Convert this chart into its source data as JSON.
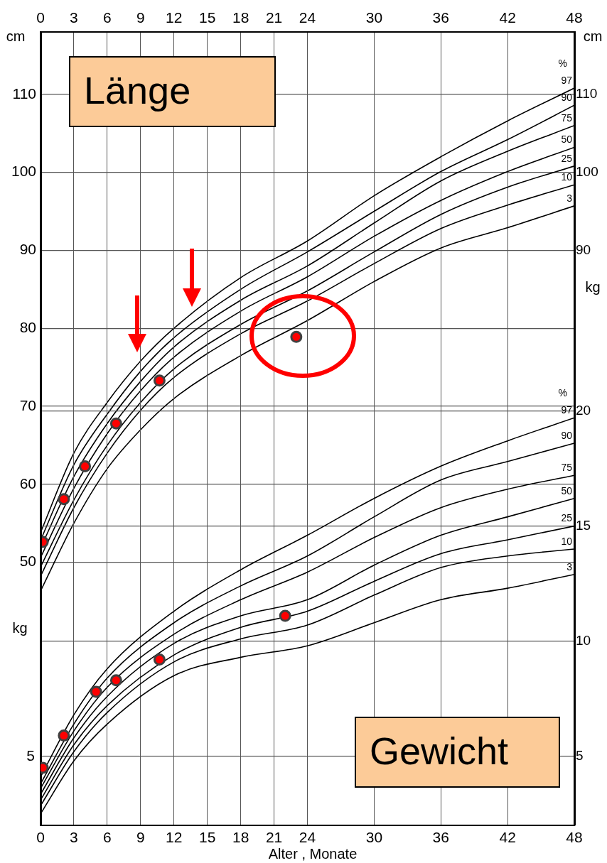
{
  "chart_data": [
    {
      "type": "line",
      "title": "Länge",
      "ylabel": "cm",
      "y2label": "cm",
      "xlim": [
        0,
        48
      ],
      "xticks": [
        0,
        3,
        6,
        9,
        12,
        15,
        18,
        21,
        24,
        30,
        36,
        42,
        48
      ],
      "ylim": [
        44.5,
        118
      ],
      "yticks": [
        50,
        60,
        70,
        80,
        90,
        100,
        110
      ],
      "y2lim": [
        44.5,
        118
      ],
      "y2ticks": [
        90,
        100,
        110
      ],
      "grid": true,
      "annotations": [
        "%"
      ],
      "series": [
        {
          "name": "97",
          "color": "#000000",
          "x": [
            0,
            3,
            6,
            9,
            12,
            18,
            24,
            30,
            36,
            42,
            48
          ],
          "values": [
            53.8,
            64,
            70.5,
            75.8,
            80,
            86.5,
            91.2,
            97,
            102,
            106.6,
            110.8
          ]
        },
        {
          "name": "90",
          "color": "#000000",
          "x": [
            0,
            3,
            6,
            9,
            12,
            18,
            24,
            30,
            36,
            42,
            48
          ],
          "values": [
            52.8,
            62.5,
            69,
            74.5,
            78.8,
            85,
            89.8,
            95,
            100.1,
            104.2,
            108.6
          ]
        },
        {
          "name": "75",
          "color": "#000000",
          "x": [
            0,
            3,
            6,
            9,
            12,
            18,
            24,
            30,
            36,
            42,
            48
          ],
          "values": [
            51.8,
            61,
            67.8,
            73.2,
            77.6,
            83.6,
            88,
            93.5,
            98.9,
            102.7,
            106
          ]
        },
        {
          "name": "50",
          "color": "#000000",
          "x": [
            0,
            3,
            6,
            9,
            12,
            18,
            24,
            30,
            36,
            42,
            48
          ],
          "values": [
            50.6,
            59.5,
            66.5,
            72,
            76.3,
            82.2,
            86.6,
            91.8,
            96.4,
            100.1,
            103.2
          ]
        },
        {
          "name": "25",
          "color": "#000000",
          "x": [
            0,
            3,
            6,
            9,
            12,
            18,
            24,
            30,
            36,
            42,
            48
          ],
          "values": [
            49.4,
            58,
            65,
            70.5,
            74.8,
            80.5,
            84.8,
            89.8,
            94.6,
            98.1,
            100.8
          ]
        },
        {
          "name": "10",
          "color": "#000000",
          "x": [
            0,
            3,
            6,
            9,
            12,
            18,
            24,
            30,
            36,
            42,
            48
          ],
          "values": [
            48.2,
            57,
            64,
            69.5,
            73.7,
            79.3,
            83.5,
            88.3,
            92.8,
            95.8,
            98.4
          ]
        },
        {
          "name": "3",
          "color": "#000000",
          "x": [
            0,
            3,
            6,
            9,
            12,
            18,
            24,
            30,
            36,
            42,
            48
          ],
          "values": [
            46.3,
            55,
            62,
            67,
            71,
            76.5,
            81,
            86,
            90.3,
            92.9,
            95.7
          ]
        },
        {
          "type": "scatter",
          "marker": "circle",
          "color": "#ff0000",
          "x": [
            0.2,
            2.1,
            4,
            6.8,
            10.7,
            23
          ],
          "values": [
            52.6,
            58.1,
            62.3,
            67.8,
            73.3,
            78.9
          ]
        }
      ]
    },
    {
      "type": "line",
      "title": "Gewicht",
      "xlabel": "Alter , Monate",
      "ylabel": "kg",
      "y2label": "kg",
      "xlim": [
        0,
        48
      ],
      "xticks": [
        0,
        3,
        6,
        9,
        12,
        15,
        18,
        21,
        24,
        30,
        36,
        42,
        48
      ],
      "y2lim": [
        2,
        25.6
      ],
      "y2ticks": [
        5,
        10,
        15,
        20
      ],
      "grid": true,
      "annotations": [
        "%",
        "5"
      ],
      "series": [
        {
          "name": "97",
          "axis": "y2",
          "color": "#000000",
          "x": [
            0,
            3,
            6,
            12,
            18,
            24,
            30,
            36,
            42,
            48
          ],
          "values": [
            4.1,
            6.8,
            8.8,
            11.3,
            13.1,
            14.6,
            16.2,
            17.6,
            18.7,
            19.7
          ]
        },
        {
          "name": "90",
          "axis": "y2",
          "color": "#000000",
          "x": [
            0,
            3,
            6,
            12,
            18,
            24,
            30,
            36,
            42,
            48
          ],
          "values": [
            3.8,
            6.4,
            8.4,
            10.8,
            12.4,
            13.7,
            15.4,
            17,
            17.8,
            18.6
          ]
        },
        {
          "name": "75",
          "axis": "y2",
          "color": "#000000",
          "x": [
            0,
            3,
            6,
            12,
            18,
            24,
            30,
            36,
            42,
            48
          ],
          "values": [
            3.6,
            6.1,
            8,
            10.3,
            11.8,
            13,
            14.5,
            15.8,
            16.6,
            17.2
          ]
        },
        {
          "name": "50",
          "axis": "y2",
          "color": "#000000",
          "x": [
            0,
            3,
            6,
            12,
            18,
            24,
            30,
            36,
            42,
            48
          ],
          "values": [
            3.35,
            5.8,
            7.6,
            9.9,
            11.1,
            11.8,
            13.3,
            14.6,
            15.4,
            16.2
          ]
        },
        {
          "name": "25",
          "axis": "y2",
          "color": "#000000",
          "x": [
            0,
            3,
            6,
            12,
            18,
            24,
            30,
            36,
            42,
            48
          ],
          "values": [
            3.1,
            5.5,
            7.2,
            9.4,
            10.6,
            11.3,
            12.6,
            13.8,
            14.4,
            15
          ]
        },
        {
          "name": "10",
          "axis": "y2",
          "color": "#000000",
          "x": [
            0,
            3,
            6,
            12,
            18,
            24,
            30,
            36,
            42,
            48
          ],
          "values": [
            2.85,
            5.2,
            6.9,
            9.1,
            10.1,
            10.7,
            12,
            13.2,
            13.7,
            14
          ]
        },
        {
          "name": "3",
          "axis": "y2",
          "color": "#000000",
          "x": [
            0,
            3,
            6,
            12,
            18,
            24,
            30,
            36,
            42,
            48
          ],
          "values": [
            2.5,
            4.8,
            6.4,
            8.5,
            9.3,
            9.8,
            10.8,
            11.8,
            12.3,
            12.9
          ]
        },
        {
          "type": "scatter",
          "axis": "y2",
          "marker": "circle",
          "color": "#ff0000",
          "x": [
            0.2,
            2.1,
            5,
            6.8,
            10.7,
            22
          ],
          "values": [
            4.5,
            5.9,
            7.8,
            8.3,
            9.2,
            11.1
          ]
        }
      ]
    }
  ]
}
